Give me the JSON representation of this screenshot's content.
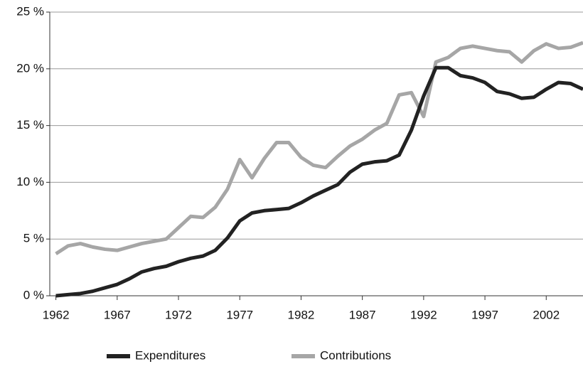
{
  "chart_data": {
    "type": "line",
    "x": [
      1962,
      1963,
      1964,
      1965,
      1966,
      1967,
      1968,
      1969,
      1970,
      1971,
      1972,
      1973,
      1974,
      1975,
      1976,
      1977,
      1978,
      1979,
      1980,
      1981,
      1982,
      1983,
      1984,
      1985,
      1986,
      1987,
      1988,
      1989,
      1990,
      1991,
      1992,
      1993,
      1994,
      1995,
      1996,
      1997,
      1998,
      1999,
      2000,
      2001,
      2002,
      2003,
      2004,
      2005
    ],
    "series": [
      {
        "name": "Expenditures",
        "color": "#222222",
        "values": [
          0,
          0.1,
          0.2,
          0.4,
          0.7,
          1.0,
          1.5,
          2.1,
          2.4,
          2.6,
          3.0,
          3.3,
          3.5,
          4.0,
          5.1,
          6.6,
          7.3,
          7.5,
          7.6,
          7.7,
          8.2,
          8.8,
          9.3,
          9.8,
          10.9,
          11.6,
          11.8,
          11.9,
          12.4,
          14.6,
          17.6,
          20.1,
          20.1,
          19.4,
          19.2,
          18.8,
          18.0,
          17.8,
          17.4,
          17.5,
          18.2,
          18.8,
          18.7,
          18.2
        ]
      },
      {
        "name": "Contributions",
        "color": "#a6a6a6",
        "values": [
          3.7,
          4.4,
          4.6,
          4.3,
          4.1,
          4.0,
          4.3,
          4.6,
          4.8,
          5.0,
          6.0,
          7.0,
          6.9,
          7.8,
          9.4,
          12.0,
          10.4,
          12.1,
          13.5,
          13.5,
          12.2,
          11.5,
          11.3,
          12.3,
          13.2,
          13.8,
          14.6,
          15.2,
          17.7,
          17.9,
          15.8,
          20.6,
          21.0,
          21.8,
          22.0,
          21.8,
          21.6,
          21.5,
          20.6,
          21.6,
          22.2,
          21.8,
          21.9,
          22.3
        ]
      }
    ],
    "xlim": [
      1961.5,
      2005
    ],
    "xticks": [
      1962,
      1967,
      1972,
      1977,
      1982,
      1987,
      1992,
      1997,
      2002
    ],
    "ylim": [
      0,
      25
    ],
    "yticks": [
      {
        "value": 0,
        "label": "0 %"
      },
      {
        "value": 5,
        "label": "5 %"
      },
      {
        "value": 10,
        "label": "10 %"
      },
      {
        "value": 15,
        "label": "15 %"
      },
      {
        "value": 20,
        "label": "20 %"
      },
      {
        "value": 25,
        "label": "25 %"
      }
    ],
    "grid": true,
    "legend": "bottom"
  }
}
